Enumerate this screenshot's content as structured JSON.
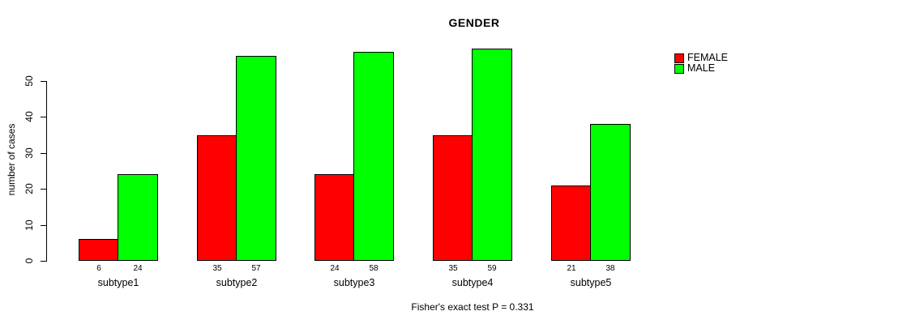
{
  "chart_data": {
    "type": "bar",
    "title": "GENDER",
    "ylabel": "number of cases",
    "xlabel": "",
    "categories": [
      "subtype1",
      "subtype2",
      "subtype3",
      "subtype4",
      "subtype5"
    ],
    "series": [
      {
        "name": "FEMALE",
        "color": "#FF0000",
        "values": [
          6,
          35,
          24,
          35,
          21
        ]
      },
      {
        "name": "MALE",
        "color": "#00FF00",
        "values": [
          24,
          57,
          58,
          59,
          38
        ]
      }
    ],
    "bar_value_labels": {
      "FEMALE": [
        6,
        35,
        24,
        35,
        21
      ],
      "MALE": [
        24,
        57,
        58,
        59,
        38
      ]
    },
    "yticks": [
      0,
      10,
      20,
      30,
      40,
      50
    ],
    "ylim": [
      0,
      59
    ],
    "grid": false,
    "legend_position": "top-right",
    "caption": "Fisher's exact test P = 0.331",
    "colors": {
      "female": "#FF0000",
      "male": "#00FF00",
      "axis": "#000000",
      "background": "#FFFFFF"
    }
  }
}
